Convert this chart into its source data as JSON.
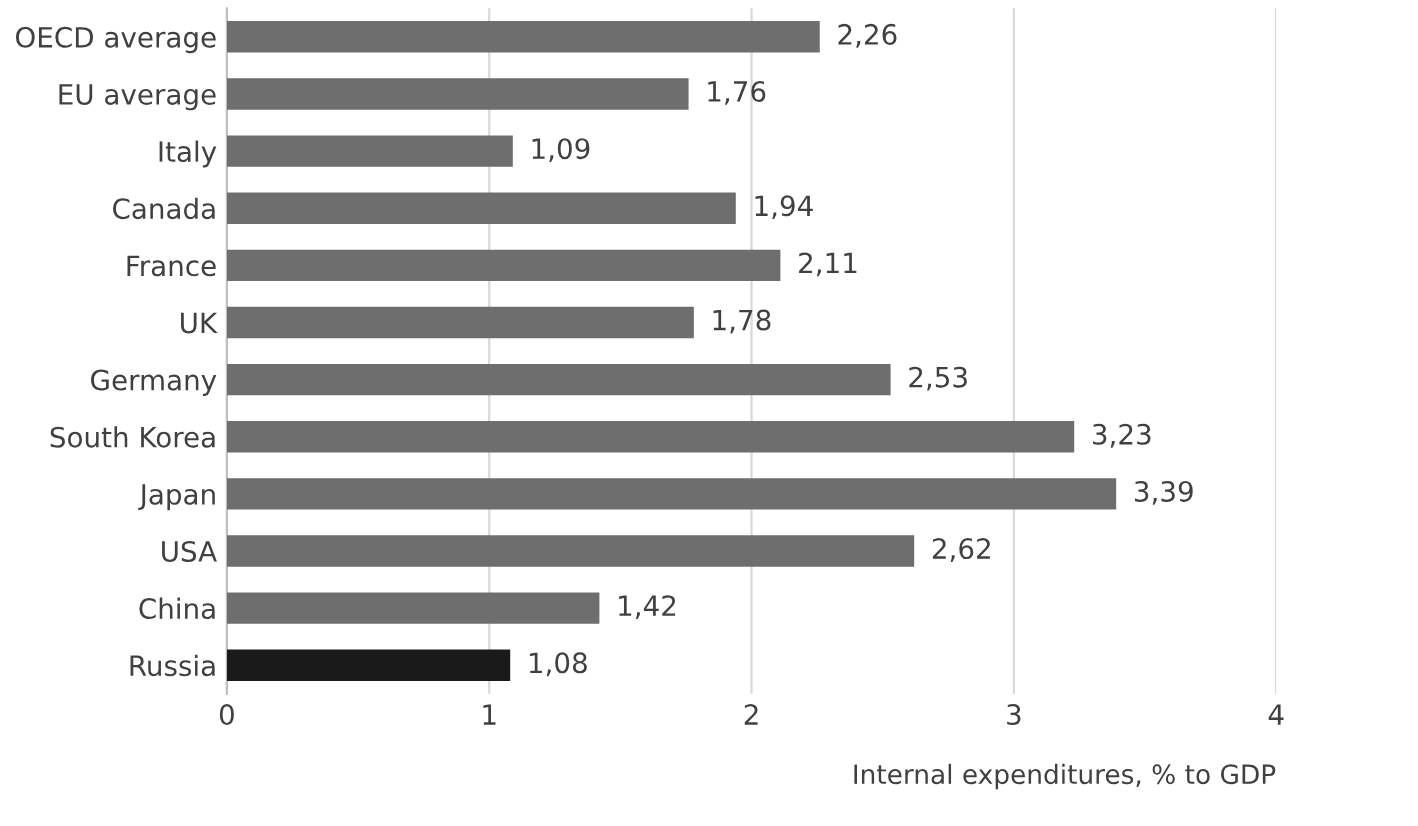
{
  "chart_data": {
    "type": "bar",
    "orientation": "horizontal",
    "categories": [
      "OECD average",
      "EU average",
      "Italy",
      "Canada",
      "France",
      "UK",
      "Germany",
      "South Korea",
      "Japan",
      "USA",
      "China",
      "Russia"
    ],
    "values": [
      2.26,
      1.76,
      1.09,
      1.94,
      2.11,
      1.78,
      2.53,
      3.23,
      3.39,
      2.62,
      1.42,
      1.08
    ],
    "value_labels": [
      "2,26",
      "1,76",
      "1,09",
      "1,94",
      "2,11",
      "1,78",
      "2,53",
      "3,23",
      "3,39",
      "2,62",
      "1,42",
      "1,08"
    ],
    "colors": [
      "#6e6e6e",
      "#6e6e6e",
      "#6e6e6e",
      "#6e6e6e",
      "#6e6e6e",
      "#6e6e6e",
      "#6e6e6e",
      "#6e6e6e",
      "#6e6e6e",
      "#6e6e6e",
      "#6e6e6e",
      "#1a1a1a"
    ],
    "xlim": [
      0,
      4
    ],
    "xticks": [
      0,
      1,
      2,
      3,
      4
    ],
    "xlabel": "Internal expenditures, % to GDP",
    "grid": "x",
    "legend": false
  }
}
